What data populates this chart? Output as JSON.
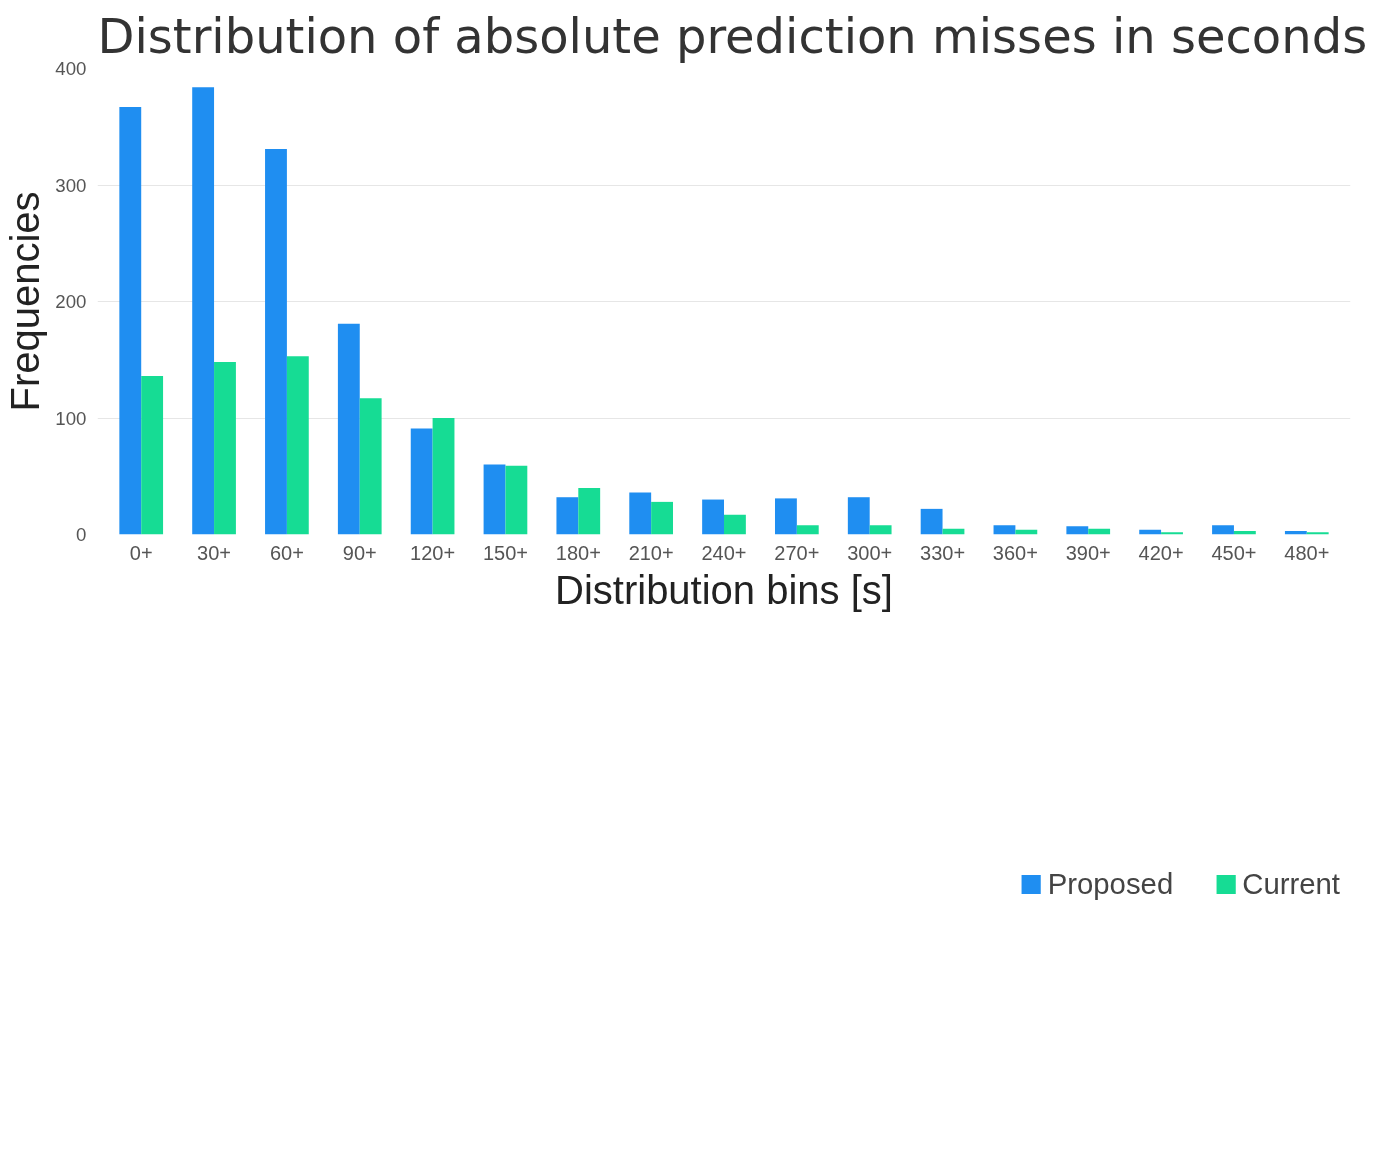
{
  "chart_data": {
    "type": "bar",
    "title": "Distribution of absolute prediction misses in seconds",
    "xlabel": "Distribution bins [s]",
    "ylabel": "Frequencies",
    "categories": [
      "0+",
      "30+",
      "60+",
      "90+",
      "120+",
      "150+",
      "180+",
      "210+",
      "240+",
      "270+",
      "300+",
      "330+",
      "360+",
      "390+",
      "420+",
      "450+",
      "480+"
    ],
    "series": [
      {
        "name": "Proposed",
        "color": "#1f8ef1",
        "values": [
          367,
          384,
          331,
          181,
          91,
          60,
          32,
          36,
          30,
          31,
          32,
          22,
          8,
          7,
          4,
          8,
          3
        ]
      },
      {
        "name": "Current",
        "color": "#16dc94",
        "values": [
          136,
          148,
          153,
          117,
          100,
          59,
          40,
          28,
          17,
          8,
          8,
          5,
          4,
          5,
          2,
          3,
          2
        ]
      }
    ],
    "ylim": [
      0,
      400
    ],
    "yticks": [
      0,
      100,
      200,
      300,
      400
    ],
    "grid": "y",
    "legend": "bottom"
  }
}
